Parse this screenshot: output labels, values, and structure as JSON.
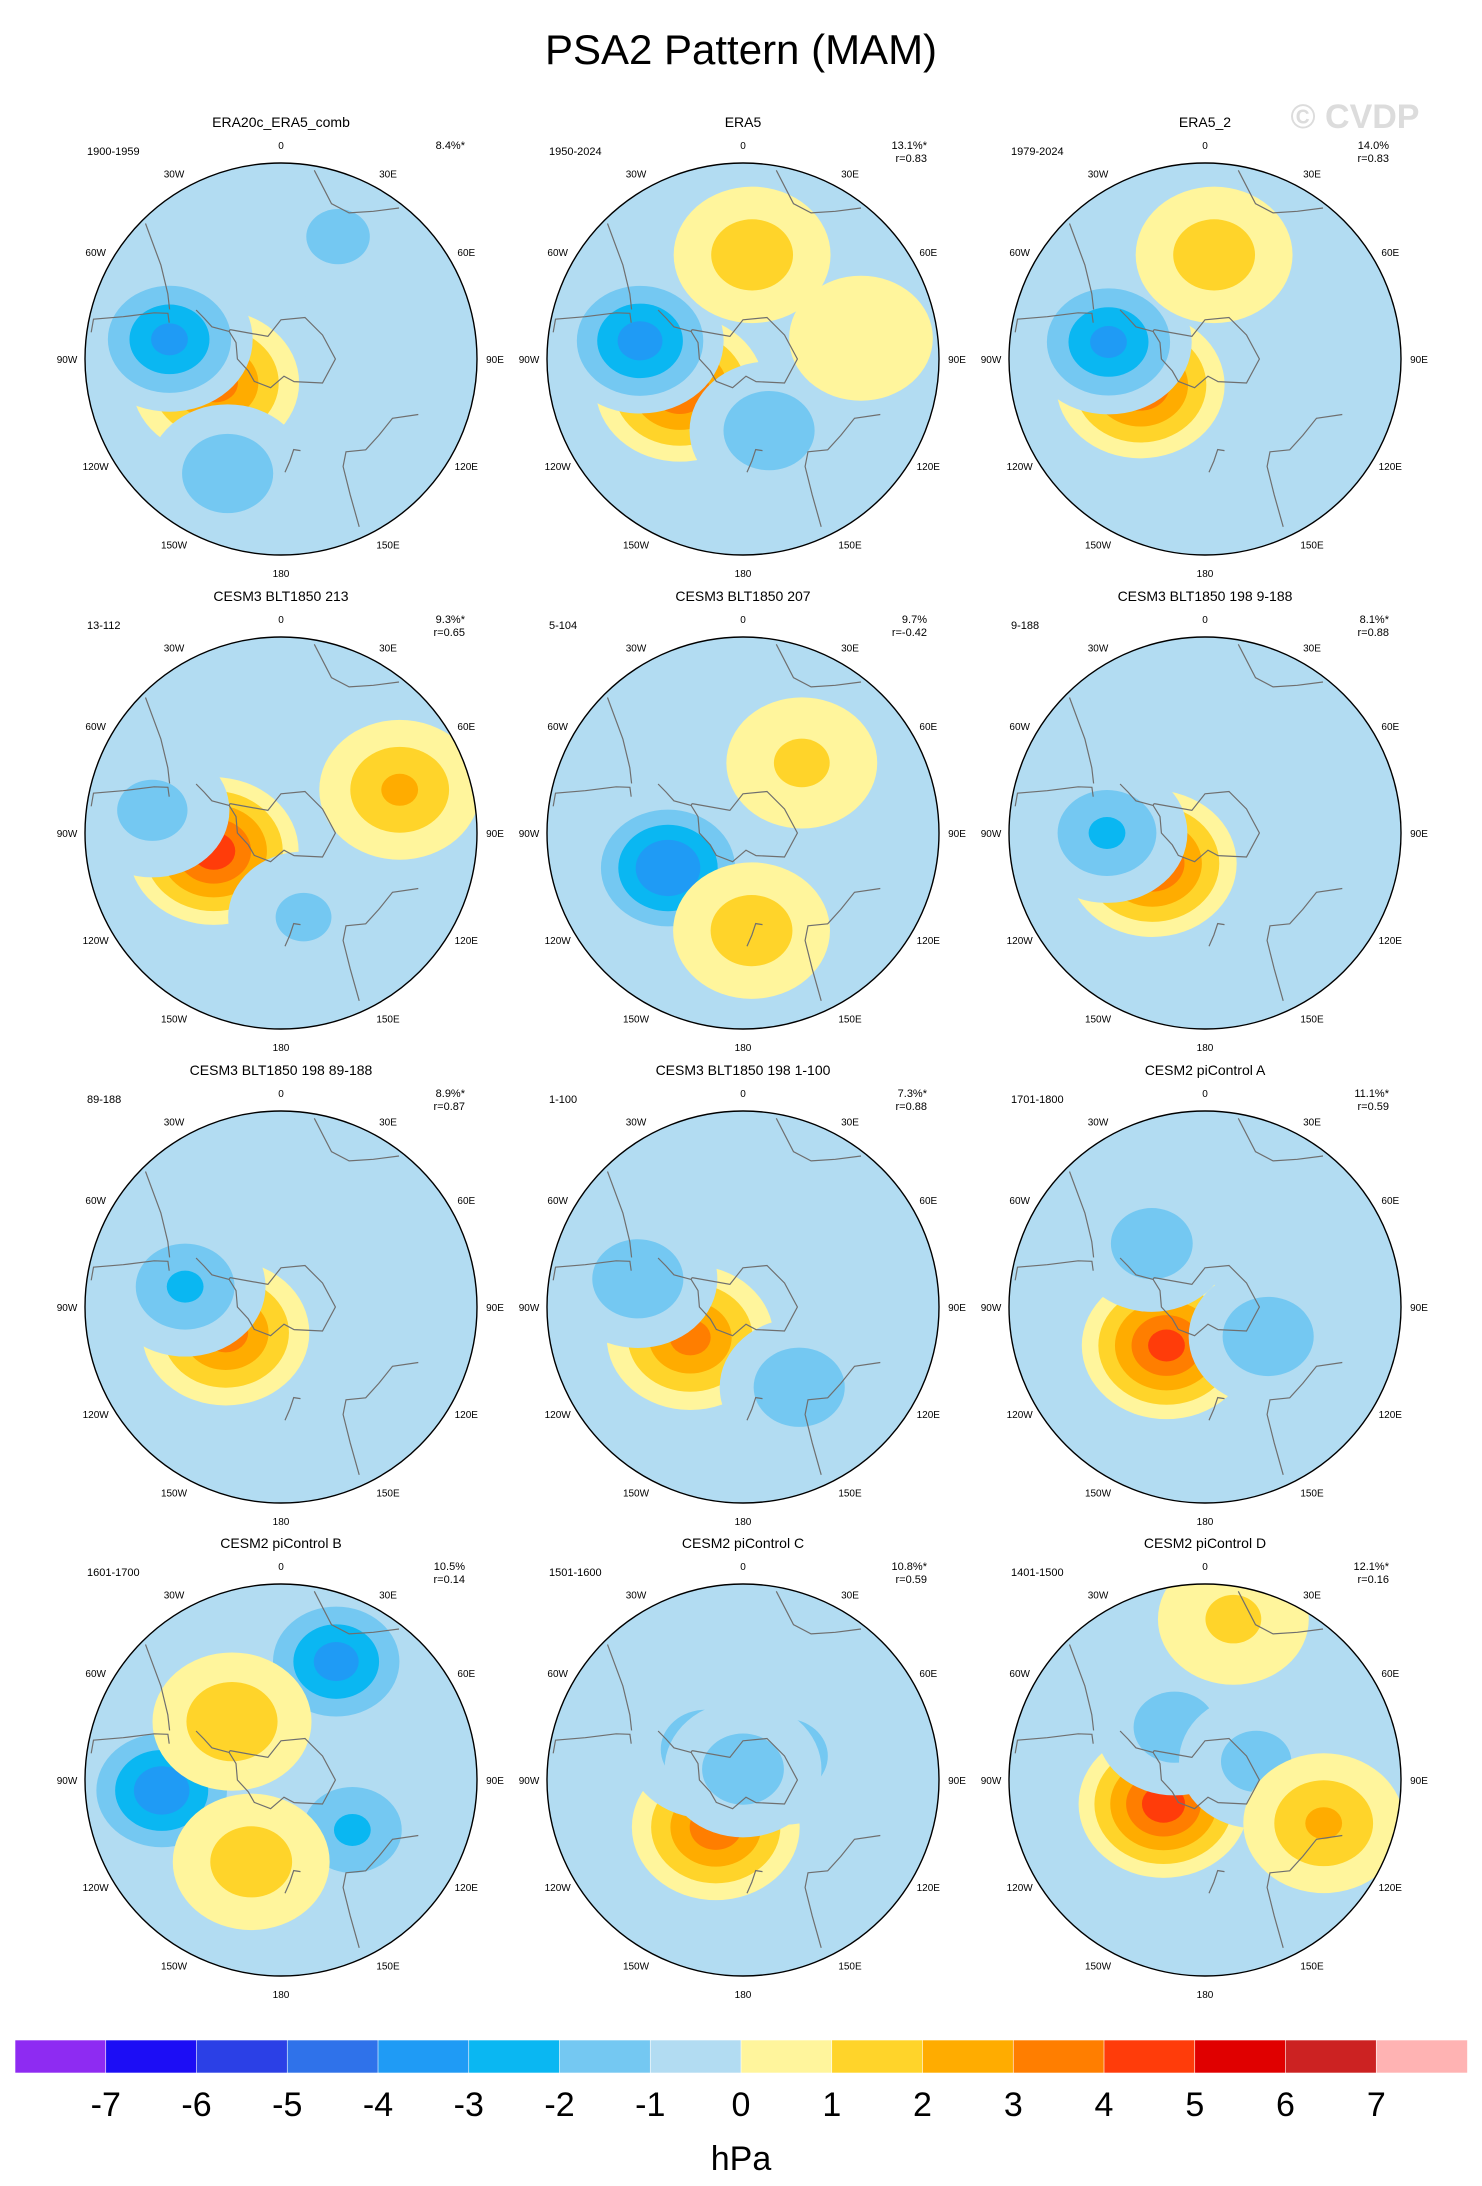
{
  "title": "PSA2 Pattern (MAM)",
  "watermark": "© CVDP",
  "longitude_labels": [
    "0",
    "30E",
    "60E",
    "90E",
    "120E",
    "150E",
    "180",
    "150W",
    "120W",
    "90W",
    "60W",
    "30W"
  ],
  "colorbar": {
    "ticks": [
      "-7",
      "-6",
      "-5",
      "-4",
      "-3",
      "-2",
      "-1",
      "0",
      "1",
      "2",
      "3",
      "4",
      "5",
      "6",
      "7"
    ],
    "unit": "hPa",
    "colors": [
      "#8e2bf2",
      "#1c0df5",
      "#2b40e6",
      "#2f72ea",
      "#1f9bf5",
      "#0ab7f2",
      "#74c8f2",
      "#b2dcf2",
      "#fff59c",
      "#ffd42a",
      "#ffac00",
      "#ff7e00",
      "#ff3c0a",
      "#e00000",
      "#cc2222",
      "#ffb3b3"
    ]
  },
  "chart_data": [
    {
      "type": "heatmap",
      "title": "ERA20c_ERA5_comb",
      "period": "1900-1959",
      "pct": "8.4%*",
      "r": "",
      "field": [
        {
          "lon": -110,
          "colat": 32,
          "v": 3.2
        },
        {
          "lon": -80,
          "colat": 52,
          "v": -3.0
        },
        {
          "lon": -155,
          "colat": 58,
          "v": -1.8
        },
        {
          "lon": 25,
          "colat": 62,
          "v": -1.3
        }
      ]
    },
    {
      "type": "heatmap",
      "title": "ERA5",
      "period": "1950-2024",
      "pct": "13.1%*",
      "r": "r=0.83",
      "field": [
        {
          "lon": -115,
          "colat": 32,
          "v": 3.6
        },
        {
          "lon": -80,
          "colat": 48,
          "v": -3.2
        },
        {
          "lon": 160,
          "colat": 35,
          "v": -1.8
        },
        {
          "lon": 5,
          "colat": 48,
          "v": 1.6
        },
        {
          "lon": 80,
          "colat": 55,
          "v": 0.9
        }
      ]
    },
    {
      "type": "heatmap",
      "title": "ERA5_2",
      "period": "1979-2024",
      "pct": "14.0%",
      "r": "r=0.83",
      "field": [
        {
          "lon": -112,
          "colat": 32,
          "v": 3.6
        },
        {
          "lon": -80,
          "colat": 45,
          "v": -3.0
        },
        {
          "lon": 5,
          "colat": 48,
          "v": 1.6
        }
      ]
    },
    {
      "type": "heatmap",
      "title": "CESM3 BLT1850 213",
      "period": "13-112",
      "pct": "9.3%*",
      "r": "r=0.65",
      "field": [
        {
          "lon": -105,
          "colat": 32,
          "v": 4.2
        },
        {
          "lon": 70,
          "colat": 58,
          "v": 2.0
        },
        {
          "lon": -80,
          "colat": 60,
          "v": -1.4
        },
        {
          "lon": 165,
          "colat": 40,
          "v": -1.2
        }
      ]
    },
    {
      "type": "heatmap",
      "title": "CESM3 BLT1850 207",
      "period": "5-104",
      "pct": "9.7%",
      "r": "r=-0.42",
      "field": [
        {
          "lon": -115,
          "colat": 38,
          "v": -3.8
        },
        {
          "lon": 175,
          "colat": 45,
          "v": 1.6
        },
        {
          "lon": 40,
          "colat": 42,
          "v": 1.2
        }
      ]
    },
    {
      "type": "heatmap",
      "title": "CESM3 BLT1850 198 9-188",
      "period": "9-188",
      "pct": "8.1%*",
      "r": "r=0.88",
      "field": [
        {
          "lon": -120,
          "colat": 28,
          "v": 3.8
        },
        {
          "lon": -90,
          "colat": 45,
          "v": -2.0
        }
      ]
    },
    {
      "type": "heatmap",
      "title": "CESM3 BLT1850 198 89-188",
      "period": "89-188",
      "pct": "8.9%*",
      "r": "r=0.87",
      "field": [
        {
          "lon": -115,
          "colat": 28,
          "v": 3.2
        },
        {
          "lon": -78,
          "colat": 45,
          "v": -2.0
        }
      ]
    },
    {
      "type": "heatmap",
      "title": "CESM3 BLT1850 198 1-100",
      "period": "1-100",
      "pct": "7.3%*",
      "r": "r=0.88",
      "field": [
        {
          "lon": -120,
          "colat": 28,
          "v": 3.1
        },
        {
          "lon": -75,
          "colat": 50,
          "v": -1.8
        },
        {
          "lon": 145,
          "colat": 45,
          "v": -1.8
        }
      ]
    },
    {
      "type": "heatmap",
      "title": "CESM2 piControl A",
      "period": "1701-1800",
      "pct": "11.1%*",
      "r": "r=0.59",
      "field": [
        {
          "lon": -135,
          "colat": 25,
          "v": 4.0
        },
        {
          "lon": -40,
          "colat": 38,
          "v": -1.6
        },
        {
          "lon": 115,
          "colat": 32,
          "v": -1.8
        }
      ]
    },
    {
      "type": "heatmap",
      "title": "CESM2 piControl B",
      "period": "1601-1700",
      "pct": "10.5%",
      "r": "r=0.14",
      "field": [
        {
          "lon": -95,
          "colat": 55,
          "v": -3.5
        },
        {
          "lon": 25,
          "colat": 60,
          "v": -3.2
        },
        {
          "lon": 125,
          "colat": 40,
          "v": -2.0
        },
        {
          "lon": -40,
          "colat": 35,
          "v": 1.8
        },
        {
          "lon": -160,
          "colat": 40,
          "v": 1.6
        }
      ]
    },
    {
      "type": "heatmap",
      "title": "CESM2 piControl C",
      "period": "1501-1600",
      "pct": "10.8%*",
      "r": "r=0.59",
      "field": [
        {
          "lon": -150,
          "colat": 25,
          "v": 3.4
        },
        {
          "lon": -50,
          "colat": 22,
          "v": -1.8
        },
        {
          "lon": 60,
          "colat": 22,
          "v": -1.7
        },
        {
          "lon": 0,
          "colat": 5,
          "v": -1.6
        }
      ]
    },
    {
      "type": "heatmap",
      "title": "CESM2 piControl D",
      "period": "1401-1500",
      "pct": "12.1%*",
      "r": "r=0.16",
      "field": [
        {
          "lon": -120,
          "colat": 22,
          "v": 4.2
        },
        {
          "lon": -30,
          "colat": 28,
          "v": -1.6
        },
        {
          "lon": 70,
          "colat": 25,
          "v": -1.4
        },
        {
          "lon": 110,
          "colat": 58,
          "v": 2.0
        },
        {
          "lon": 10,
          "colat": 75,
          "v": 1.2
        }
      ]
    }
  ]
}
